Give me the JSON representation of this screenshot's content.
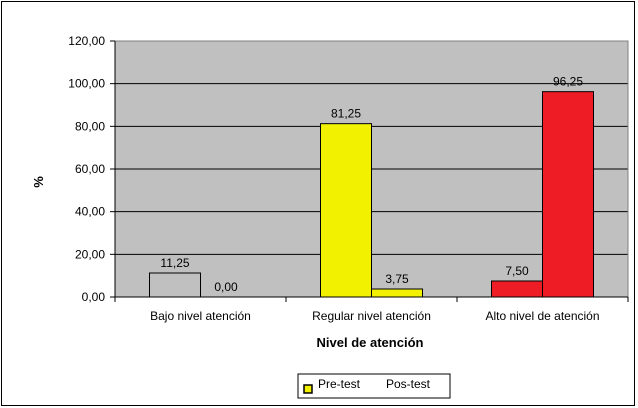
{
  "chart_data": {
    "type": "bar",
    "title": "",
    "xlabel": "Nivel de atención",
    "ylabel": "%",
    "categories": [
      "Bajo nivel atención",
      "Regular nivel atención",
      "Alto nivel de atención"
    ],
    "category_colors": [
      "#c0c0c0",
      "#f2f200",
      "#ee1c24"
    ],
    "series": [
      {
        "name": "Pre-test",
        "values": [
          11.25,
          81.25,
          7.5
        ],
        "labels": [
          "11,25",
          "81,25",
          "7,50"
        ]
      },
      {
        "name": "Pos-test",
        "values": [
          0.0,
          3.75,
          96.25
        ],
        "labels": [
          "0,00",
          "3,75",
          "96,25"
        ]
      }
    ],
    "ylim": [
      0,
      120
    ],
    "yticks": [
      0,
      20,
      40,
      60,
      80,
      100,
      120
    ],
    "ytick_labels": [
      "0,00",
      "20,00",
      "40,00",
      "60,00",
      "80,00",
      "100,00",
      "120,00"
    ],
    "grid": true,
    "plot_background": "#c0c0c0",
    "legend": {
      "placement": "bottom-center",
      "entries": [
        "Pre-test",
        "Pos-test"
      ],
      "marker_color": "#f2f200"
    }
  }
}
